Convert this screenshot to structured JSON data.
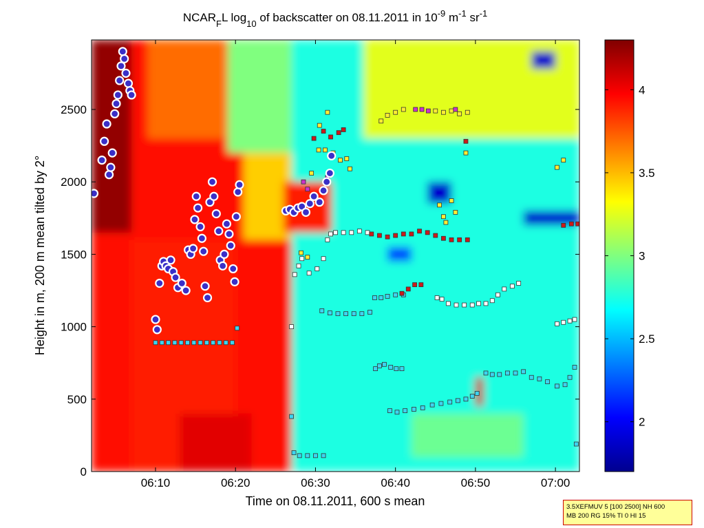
{
  "chart_data": {
    "type": "heatmap",
    "title": {
      "prefix": "NCAR",
      "sub1": "F",
      "mid": "L log",
      "sub2": "10",
      "rest": " of backscatter on 08.11.2011 in 10",
      "sup1": "-9",
      "unit1": " m",
      "sup2": "-1",
      "unit2": " sr",
      "sup3": "-1"
    },
    "xlabel": "Time on 08.11.2011, 600 s mean",
    "ylabel": "Height in m, 200 m mean tilted by 2°",
    "x_range_minutes": [
      2,
      63
    ],
    "x_ticks": [
      {
        "min": 10,
        "label": "06:10"
      },
      {
        "min": 20,
        "label": "06:20"
      },
      {
        "min": 30,
        "label": "06:30"
      },
      {
        "min": 40,
        "label": "06:40"
      },
      {
        "min": 50,
        "label": "06:50"
      },
      {
        "min": 60,
        "label": "07:00"
      }
    ],
    "ylim": [
      0,
      2980
    ],
    "y_ticks": [
      0,
      500,
      1000,
      1500,
      2000,
      2500
    ],
    "colorbar": {
      "range": [
        1.7,
        4.3
      ],
      "ticks": [
        2,
        2.5,
        3,
        3.5,
        4
      ],
      "colormap": "jet"
    },
    "regions": [
      {
        "t0": 2,
        "t1": 27,
        "h0": 0,
        "h1": 2980,
        "value": 3.95
      },
      {
        "t0": 2,
        "t1": 7,
        "h0": 1650,
        "h1": 2980,
        "value": 4.25
      },
      {
        "t0": 7,
        "t1": 20,
        "h0": 0,
        "h1": 1600,
        "value": 3.9
      },
      {
        "t0": 13,
        "t1": 22,
        "h0": 0,
        "h1": 400,
        "value": 4.05
      },
      {
        "t0": 9,
        "t1": 19,
        "h0": 2300,
        "h1": 2980,
        "value": 3.7
      },
      {
        "t0": 19,
        "t1": 27,
        "h0": 2200,
        "h1": 2980,
        "value": 3.0
      },
      {
        "t0": 21,
        "t1": 27,
        "h0": 1600,
        "h1": 2200,
        "value": 3.45
      },
      {
        "t0": 27,
        "t1": 63,
        "h0": 0,
        "h1": 2980,
        "value": 2.75
      },
      {
        "t0": 36,
        "t1": 63,
        "h0": 2300,
        "h1": 2980,
        "value": 3.25
      },
      {
        "t0": 42,
        "t1": 56,
        "h0": 100,
        "h1": 400,
        "value": 2.95
      },
      {
        "t0": 50,
        "t1": 51,
        "h0": 450,
        "h1": 650,
        "value": 4.1
      },
      {
        "t0": 26,
        "t1": 32,
        "h0": 1650,
        "h1": 2000,
        "value": 3.9
      },
      {
        "t0": 44,
        "t1": 47,
        "h0": 1850,
        "h1": 2000,
        "value": 1.9
      },
      {
        "t0": 56,
        "t1": 63,
        "h0": 1700,
        "h1": 1800,
        "value": 1.9
      },
      {
        "t0": 57,
        "t1": 60,
        "h0": 2780,
        "h1": 2900,
        "value": 1.9
      },
      {
        "t0": 39,
        "t1": 42,
        "h0": 1450,
        "h1": 1550,
        "value": 2.2
      }
    ],
    "markers": {
      "white_dots": {
        "color": "#3a2fc7",
        "points": [
          [
            2.3,
            1920
          ],
          [
            3.3,
            2150
          ],
          [
            3.6,
            2280
          ],
          [
            3.9,
            2400
          ],
          [
            4.2,
            2050
          ],
          [
            4.4,
            2100
          ],
          [
            4.6,
            2200
          ],
          [
            4.9,
            2470
          ],
          [
            5.1,
            2540
          ],
          [
            5.3,
            2600
          ],
          [
            5.5,
            2700
          ],
          [
            5.7,
            2800
          ],
          [
            5.9,
            2900
          ],
          [
            6.1,
            2850
          ],
          [
            6.3,
            2750
          ],
          [
            6.6,
            2680
          ],
          [
            6.8,
            2630
          ],
          [
            7.0,
            2600
          ],
          [
            10.0,
            1050
          ],
          [
            10.2,
            980
          ],
          [
            10.5,
            1300
          ],
          [
            10.8,
            1420
          ],
          [
            11.0,
            1450
          ],
          [
            11.3,
            1420
          ],
          [
            11.6,
            1400
          ],
          [
            11.9,
            1460
          ],
          [
            12.2,
            1380
          ],
          [
            12.5,
            1340
          ],
          [
            12.8,
            1270
          ],
          [
            13.3,
            1300
          ],
          [
            13.8,
            1250
          ],
          [
            14.1,
            1530
          ],
          [
            14.4,
            1500
          ],
          [
            14.7,
            1540
          ],
          [
            14.9,
            1740
          ],
          [
            15.1,
            1900
          ],
          [
            15.3,
            1820
          ],
          [
            15.6,
            1690
          ],
          [
            15.8,
            1610
          ],
          [
            16.0,
            1520
          ],
          [
            16.2,
            1280
          ],
          [
            16.5,
            1200
          ],
          [
            16.8,
            1860
          ],
          [
            17.1,
            2000
          ],
          [
            17.3,
            1900
          ],
          [
            17.6,
            1780
          ],
          [
            17.9,
            1660
          ],
          [
            18.1,
            1460
          ],
          [
            18.4,
            1420
          ],
          [
            18.6,
            1500
          ],
          [
            18.9,
            1710
          ],
          [
            19.2,
            1640
          ],
          [
            19.4,
            1560
          ],
          [
            19.7,
            1400
          ],
          [
            19.9,
            1310
          ],
          [
            20.1,
            1760
          ],
          [
            20.3,
            1930
          ],
          [
            20.5,
            1980
          ],
          [
            26.3,
            1800
          ],
          [
            26.8,
            1810
          ],
          [
            27.3,
            1790
          ],
          [
            27.8,
            1820
          ],
          [
            28.3,
            1830
          ],
          [
            28.8,
            1790
          ],
          [
            29.3,
            1850
          ],
          [
            29.8,
            1900
          ],
          [
            30.5,
            1860
          ],
          [
            31.0,
            1940
          ],
          [
            31.4,
            2000
          ],
          [
            31.8,
            2060
          ],
          [
            32.0,
            2180
          ]
        ]
      },
      "squares": [
        {
          "color": "#3ed4f0",
          "points": [
            [
              10.0,
              890
            ],
            [
              10.8,
              890
            ],
            [
              11.6,
              890
            ],
            [
              12.4,
              890
            ],
            [
              13.2,
              890
            ],
            [
              14.0,
              890
            ],
            [
              14.8,
              890
            ],
            [
              15.6,
              890
            ],
            [
              16.4,
              890
            ],
            [
              17.2,
              890
            ],
            [
              18.0,
              890
            ],
            [
              18.8,
              890
            ],
            [
              19.6,
              890
            ],
            [
              20.2,
              990
            ],
            [
              27.0,
              380
            ],
            [
              27.3,
              130
            ],
            [
              28.0,
              110
            ],
            [
              29.0,
              110
            ],
            [
              30.0,
              110
            ],
            [
              31.0,
              110
            ],
            [
              30.8,
              1110
            ],
            [
              31.8,
              1095
            ],
            [
              32.8,
              1090
            ],
            [
              33.8,
              1090
            ],
            [
              34.8,
              1090
            ],
            [
              35.8,
              1090
            ],
            [
              36.8,
              1100
            ],
            [
              37.4,
              1200
            ],
            [
              38.2,
              1200
            ],
            [
              39.0,
              1210
            ],
            [
              40.0,
              1220
            ],
            [
              41.0,
              1220
            ],
            [
              37.5,
              710
            ],
            [
              38.0,
              730
            ],
            [
              38.6,
              740
            ],
            [
              39.4,
              720
            ],
            [
              40.1,
              710
            ],
            [
              40.8,
              710
            ],
            [
              39.3,
              420
            ],
            [
              40.2,
              410
            ],
            [
              41.2,
              420
            ],
            [
              42.3,
              430
            ],
            [
              43.4,
              440
            ],
            [
              44.6,
              460
            ],
            [
              45.7,
              470
            ],
            [
              46.8,
              480
            ],
            [
              47.8,
              490
            ],
            [
              48.8,
              500
            ],
            [
              49.6,
              520
            ],
            [
              50.2,
              540
            ],
            [
              51.3,
              680
            ],
            [
              52.1,
              670
            ],
            [
              53.0,
              670
            ],
            [
              54.0,
              680
            ],
            [
              55.0,
              680
            ],
            [
              56.0,
              690
            ],
            [
              57.0,
              650
            ],
            [
              58.0,
              640
            ],
            [
              59.0,
              620
            ],
            [
              60.2,
              590
            ],
            [
              61.2,
              600
            ],
            [
              61.8,
              650
            ],
            [
              62.4,
              720
            ],
            [
              62.6,
              190
            ]
          ]
        },
        {
          "color": "#ffffff",
          "points": [
            [
              27.0,
              1000
            ],
            [
              27.4,
              1360
            ],
            [
              27.9,
              1420
            ],
            [
              28.3,
              1470
            ],
            [
              29.2,
              1370
            ],
            [
              30.2,
              1400
            ],
            [
              31.0,
              1470
            ],
            [
              31.5,
              1600
            ],
            [
              31.9,
              1640
            ],
            [
              32.5,
              1650
            ],
            [
              33.5,
              1650
            ],
            [
              34.5,
              1650
            ],
            [
              35.5,
              1660
            ],
            [
              36.5,
              1650
            ],
            [
              45.2,
              1200
            ],
            [
              45.8,
              1190
            ],
            [
              46.6,
              1160
            ],
            [
              47.6,
              1150
            ],
            [
              48.6,
              1150
            ],
            [
              49.6,
              1150
            ],
            [
              50.4,
              1160
            ],
            [
              51.3,
              1160
            ],
            [
              52.1,
              1180
            ],
            [
              52.8,
              1220
            ],
            [
              53.6,
              1260
            ],
            [
              54.6,
              1280
            ],
            [
              55.4,
              1300
            ],
            [
              60.2,
              1020
            ],
            [
              61.0,
              1030
            ],
            [
              61.8,
              1040
            ],
            [
              62.4,
              1050
            ]
          ]
        },
        {
          "color": "#cc1a1a",
          "points": [
            [
              37.0,
              1640
            ],
            [
              38.0,
              1630
            ],
            [
              39.0,
              1620
            ],
            [
              40.0,
              1630
            ],
            [
              41.0,
              1640
            ],
            [
              42.0,
              1640
            ],
            [
              43.0,
              1660
            ],
            [
              44.0,
              1650
            ],
            [
              45.0,
              1630
            ],
            [
              46.0,
              1610
            ],
            [
              47.0,
              1600
            ],
            [
              48.0,
              1600
            ],
            [
              49.0,
              1600
            ],
            [
              40.8,
              1230
            ],
            [
              41.6,
              1260
            ],
            [
              42.4,
              1290
            ],
            [
              43.2,
              1290
            ],
            [
              48.8,
              2280
            ],
            [
              61.0,
              1700
            ],
            [
              62.0,
              1710
            ],
            [
              62.8,
              1710
            ],
            [
              29.8,
              2300
            ],
            [
              31.0,
              2350
            ],
            [
              31.9,
              2310
            ],
            [
              32.9,
              2340
            ],
            [
              33.5,
              2360
            ]
          ]
        },
        {
          "color": "#ffee33",
          "points": [
            [
              29.5,
              2060
            ],
            [
              30.4,
              2220
            ],
            [
              31.2,
              2220
            ],
            [
              32.2,
              2200
            ],
            [
              33.1,
              2150
            ],
            [
              33.9,
              2160
            ],
            [
              34.3,
              2090
            ],
            [
              45.5,
              1840
            ],
            [
              46.0,
              1760
            ],
            [
              46.3,
              1720
            ],
            [
              47.0,
              1870
            ],
            [
              47.5,
              1790
            ],
            [
              48.8,
              2200
            ],
            [
              60.2,
              2100
            ],
            [
              61.0,
              2150
            ],
            [
              29.0,
              1480
            ],
            [
              28.2,
              1510
            ],
            [
              38.2,
              2420
            ],
            [
              39.0,
              2460
            ],
            [
              40.0,
              2480
            ],
            [
              41.0,
              2500
            ],
            [
              45.0,
              2490
            ],
            [
              46.0,
              2480
            ],
            [
              47.0,
              2490
            ],
            [
              48.0,
              2470
            ],
            [
              49.0,
              2480
            ],
            [
              31.5,
              2480
            ],
            [
              30.5,
              2390
            ]
          ]
        },
        {
          "color": "#cc33cc",
          "points": [
            [
              42.5,
              2500
            ],
            [
              43.3,
              2500
            ],
            [
              44.1,
              2490
            ],
            [
              47.5,
              2500
            ],
            [
              31.5,
              2030
            ],
            [
              28.5,
              2000
            ],
            [
              29.0,
              1950
            ]
          ]
        }
      ]
    }
  },
  "annotation": {
    "line1": "3.5XEFMUV 5 [100 2500] NH 600",
    "line2": "MB 200 RG 15% TI 0 HI 15"
  }
}
